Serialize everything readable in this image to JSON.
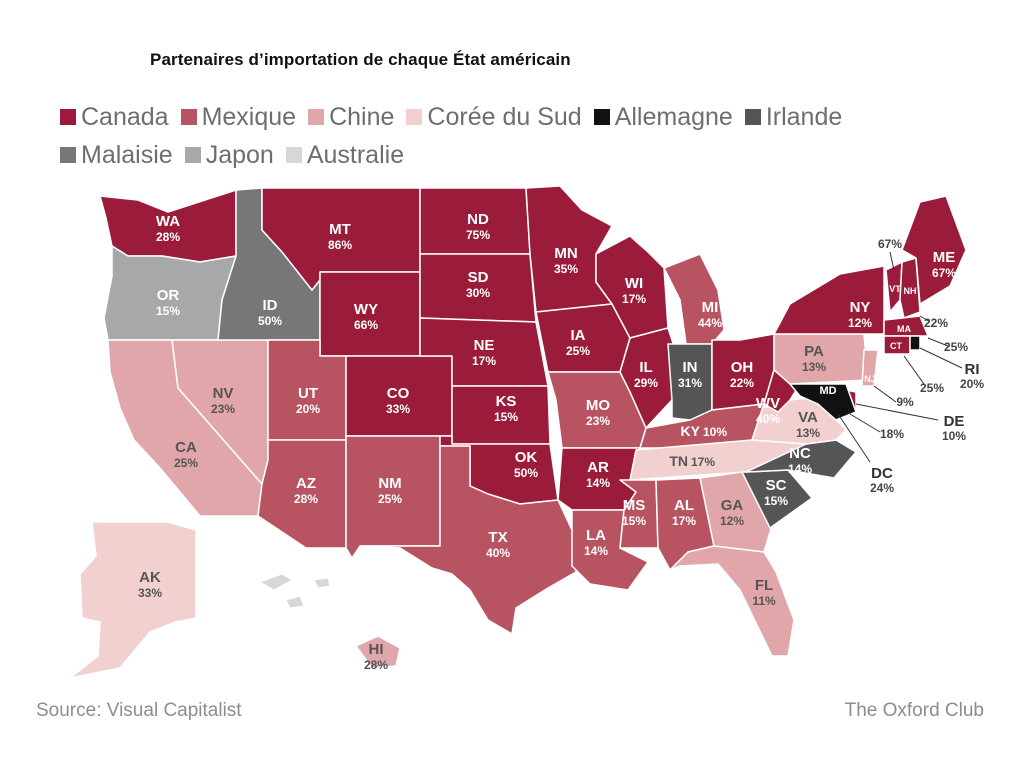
{
  "title": "Partenaires d’importation de chaque État américain",
  "legend": [
    {
      "key": "canada",
      "label": "Canada",
      "color": "#9b1b3b"
    },
    {
      "key": "mexique",
      "label": "Mexique",
      "color": "#b85361"
    },
    {
      "key": "chine",
      "label": "Chine",
      "color": "#e0a6aa"
    },
    {
      "key": "coree",
      "label": "Corée du Sud",
      "color": "#f2d0d0"
    },
    {
      "key": "allemagne",
      "label": "Allemagne",
      "color": "#111111"
    },
    {
      "key": "irlande",
      "label": "Irlande",
      "color": "#555558"
    },
    {
      "key": "malaisie",
      "label": "Malaisie",
      "color": "#777779"
    },
    {
      "key": "japon",
      "label": "Japon",
      "color": "#a7a8aa"
    },
    {
      "key": "australie",
      "label": "Australie",
      "color": "#d7d7d8"
    }
  ],
  "states": [
    {
      "abbr": "WA",
      "pct": "28%",
      "partner": "canada"
    },
    {
      "abbr": "OR",
      "pct": "15%",
      "partner": "japon"
    },
    {
      "abbr": "CA",
      "pct": "25%",
      "partner": "chine"
    },
    {
      "abbr": "NV",
      "pct": "23%",
      "partner": "chine"
    },
    {
      "abbr": "ID",
      "pct": "50%",
      "partner": "malaisie"
    },
    {
      "abbr": "MT",
      "pct": "86%",
      "partner": "canada"
    },
    {
      "abbr": "WY",
      "pct": "66%",
      "partner": "canada"
    },
    {
      "abbr": "UT",
      "pct": "20%",
      "partner": "mexique"
    },
    {
      "abbr": "AZ",
      "pct": "28%",
      "partner": "mexique"
    },
    {
      "abbr": "CO",
      "pct": "33%",
      "partner": "canada"
    },
    {
      "abbr": "NM",
      "pct": "25%",
      "partner": "mexique"
    },
    {
      "abbr": "ND",
      "pct": "75%",
      "partner": "canada"
    },
    {
      "abbr": "SD",
      "pct": "30%",
      "partner": "canada"
    },
    {
      "abbr": "NE",
      "pct": "17%",
      "partner": "canada"
    },
    {
      "abbr": "KS",
      "pct": "15%",
      "partner": "canada"
    },
    {
      "abbr": "OK",
      "pct": "50%",
      "partner": "canada"
    },
    {
      "abbr": "TX",
      "pct": "40%",
      "partner": "mexique"
    },
    {
      "abbr": "MN",
      "pct": "35%",
      "partner": "canada"
    },
    {
      "abbr": "IA",
      "pct": "25%",
      "partner": "canada"
    },
    {
      "abbr": "MO",
      "pct": "23%",
      "partner": "mexique"
    },
    {
      "abbr": "AR",
      "pct": "14%",
      "partner": "canada"
    },
    {
      "abbr": "LA",
      "pct": "14%",
      "partner": "mexique"
    },
    {
      "abbr": "WI",
      "pct": "17%",
      "partner": "canada"
    },
    {
      "abbr": "IL",
      "pct": "29%",
      "partner": "canada"
    },
    {
      "abbr": "MI",
      "pct": "44%",
      "partner": "mexique"
    },
    {
      "abbr": "IN",
      "pct": "31%",
      "partner": "irlande"
    },
    {
      "abbr": "OH",
      "pct": "22%",
      "partner": "canada"
    },
    {
      "abbr": "KY",
      "pct": "10%",
      "partner": "mexique"
    },
    {
      "abbr": "TN",
      "pct": "17%",
      "partner": "coree"
    },
    {
      "abbr": "MS",
      "pct": "15%",
      "partner": "mexique"
    },
    {
      "abbr": "AL",
      "pct": "17%",
      "partner": "mexique"
    },
    {
      "abbr": "GA",
      "pct": "12%",
      "partner": "chine"
    },
    {
      "abbr": "FL",
      "pct": "11%",
      "partner": "chine"
    },
    {
      "abbr": "SC",
      "pct": "15%",
      "partner": "irlande"
    },
    {
      "abbr": "NC",
      "pct": "14%",
      "partner": "irlande"
    },
    {
      "abbr": "VA",
      "pct": "13%",
      "partner": "coree"
    },
    {
      "abbr": "WV",
      "pct": "40%",
      "partner": "canada"
    },
    {
      "abbr": "PA",
      "pct": "13%",
      "partner": "chine"
    },
    {
      "abbr": "NY",
      "pct": "12%",
      "partner": "canada"
    },
    {
      "abbr": "VT",
      "pct": "67%",
      "partner": "canada"
    },
    {
      "abbr": "NH",
      "pct": "22%",
      "partner": "canada"
    },
    {
      "abbr": "ME",
      "pct": "67%",
      "partner": "canada"
    },
    {
      "abbr": "MA",
      "pct": "25%",
      "partner": "canada"
    },
    {
      "abbr": "CT",
      "pct": "25%",
      "partner": "canada"
    },
    {
      "abbr": "RI",
      "pct": "20%",
      "partner": "allemagne"
    },
    {
      "abbr": "NJ",
      "pct": "9%",
      "partner": "chine"
    },
    {
      "abbr": "DE",
      "pct": "10%",
      "partner": "canada"
    },
    {
      "abbr": "MD",
      "pct": "18%",
      "partner": "allemagne"
    },
    {
      "abbr": "DC",
      "pct": "24%",
      "partner": "allemagne"
    },
    {
      "abbr": "AK",
      "pct": "33%",
      "partner": "coree"
    },
    {
      "abbr": "HI",
      "pct": "28%",
      "partner": "chine"
    }
  ],
  "footer": {
    "source": "Source: Visual Capitalist",
    "brand": "The Oxford Club"
  }
}
